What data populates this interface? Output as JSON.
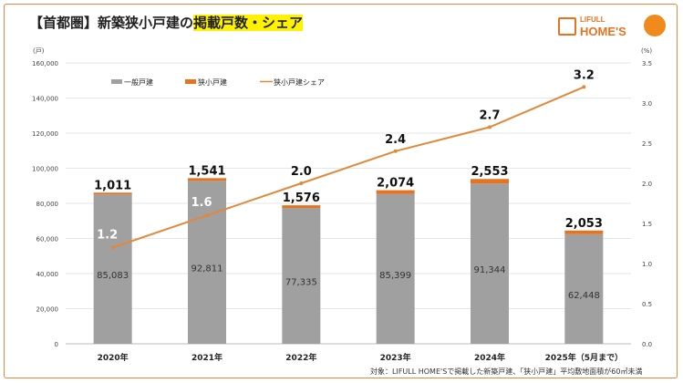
{
  "title_plain": "【首都圏】新築狭小戸建の",
  "title_highlight": "掲載戸数・シェア",
  "logo": {
    "line1": "LIFULL",
    "line2": "HOME'S"
  },
  "colors": {
    "general": "#a0a0a0",
    "narrow": "#e8731e",
    "share": "#e0893a",
    "highlight": "#fff200"
  },
  "note": "対象：LIFULL HOME'Sで掲載した新築戸建、「狭小戸建」平均敷地面積が60㎡未満",
  "chart_data": {
    "type": "bar+line",
    "categories": [
      "2020年",
      "2021年",
      "2022年",
      "2023年",
      "2024年",
      "2025年（5月まで）"
    ],
    "series": [
      {
        "name": "一般戸建",
        "type": "stacked-bar",
        "axis": "left",
        "values": [
          85083,
          92811,
          77335,
          85399,
          91344,
          62448
        ],
        "labels": [
          "85,083",
          "92,811",
          "77,335",
          "85,399",
          "91,344",
          "62,448"
        ]
      },
      {
        "name": "狭小戸建",
        "type": "stacked-bar",
        "axis": "left",
        "values": [
          1011,
          1541,
          1576,
          2074,
          2553,
          2053
        ],
        "labels": [
          "1,011",
          "1,541",
          "1,576",
          "2,074",
          "2,553",
          "2,053"
        ]
      },
      {
        "name": "狭小戸建シェア",
        "type": "line",
        "axis": "right",
        "values": [
          1.2,
          1.6,
          2.0,
          2.4,
          2.7,
          3.2
        ],
        "labels": [
          "1.2",
          "1.6",
          "2.0",
          "2.4",
          "2.7",
          "3.2"
        ]
      }
    ],
    "ylabel_left": "(戸)",
    "ylabel_right": "(%)",
    "ylim_left": [
      0,
      160000
    ],
    "ylim_right": [
      0,
      3.5
    ],
    "yticks_left": [
      "0",
      "20,000",
      "40,000",
      "60,000",
      "80,000",
      "100,000",
      "120,000",
      "140,000",
      "160,000"
    ],
    "yticks_right": [
      "0.0",
      "0.5",
      "1.0",
      "1.5",
      "2.0",
      "2.5",
      "3.0",
      "3.5"
    ],
    "grid": true,
    "legend": "top-left"
  }
}
